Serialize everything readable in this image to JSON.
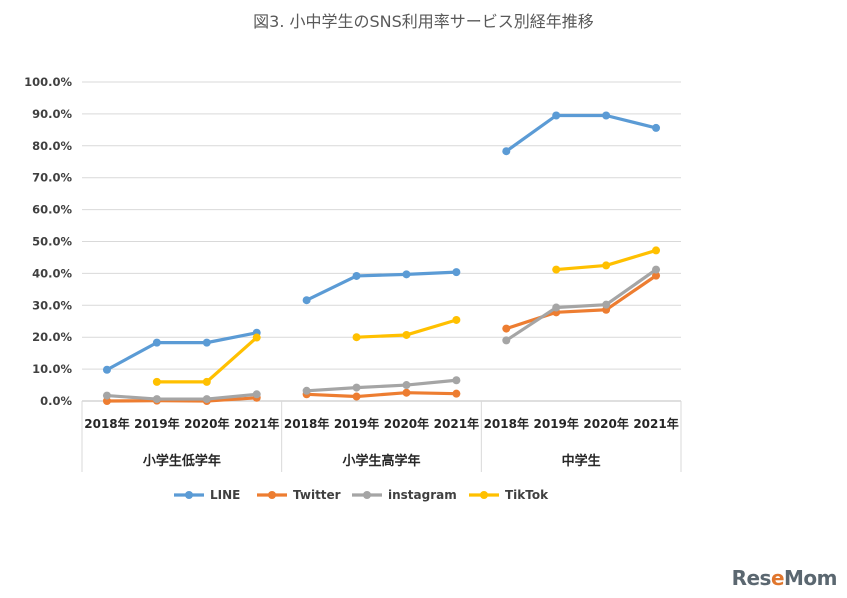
{
  "chart_data": {
    "type": "line",
    "title": "図3. 小中学生のSNS利用率サービス別経年推移",
    "ylim": [
      0,
      100
    ],
    "yticks": [
      "0.0%",
      "10.0%",
      "20.0%",
      "30.0%",
      "40.0%",
      "50.0%",
      "60.0%",
      "70.0%",
      "80.0%",
      "90.0%",
      "100.0%"
    ],
    "grid": true,
    "legend_position": "bottom",
    "groups": [
      {
        "name": "小学生低学年",
        "years": [
          "2018年",
          "2019年",
          "2020年",
          "2021年"
        ]
      },
      {
        "name": "小学生高学年",
        "years": [
          "2018年",
          "2019年",
          "2020年",
          "2021年"
        ]
      },
      {
        "name": "中学生",
        "years": [
          "2018年",
          "2019年",
          "2020年",
          "2021年"
        ]
      }
    ],
    "series": [
      {
        "name": "LINE",
        "color": "#5B9BD5",
        "values": [
          [
            9.8,
            18.3,
            18.3,
            21.4
          ],
          [
            31.6,
            39.2,
            39.7,
            40.4
          ],
          [
            78.3,
            89.5,
            89.5,
            85.6
          ]
        ]
      },
      {
        "name": "Twitter",
        "color": "#ED7D31",
        "values": [
          [
            0.0,
            0.1,
            0.0,
            1.0
          ],
          [
            2.1,
            1.4,
            2.6,
            2.3
          ],
          [
            22.7,
            27.8,
            28.6,
            39.3
          ]
        ]
      },
      {
        "name": "instagram",
        "color": "#A5A5A5",
        "values": [
          [
            1.7,
            0.6,
            0.6,
            2.1
          ],
          [
            3.2,
            4.2,
            5.0,
            6.5
          ],
          [
            19.0,
            29.3,
            30.2,
            41.2
          ]
        ]
      },
      {
        "name": "TikTok",
        "color": "#FFC000",
        "values": [
          [
            null,
            6.0,
            6.0,
            19.9
          ],
          [
            null,
            20.0,
            20.7,
            25.4
          ],
          [
            null,
            41.2,
            42.5,
            47.2
          ]
        ]
      }
    ]
  },
  "watermark": {
    "text_pre": "Res",
    "text_e": "e",
    "text_post": "Mom"
  }
}
